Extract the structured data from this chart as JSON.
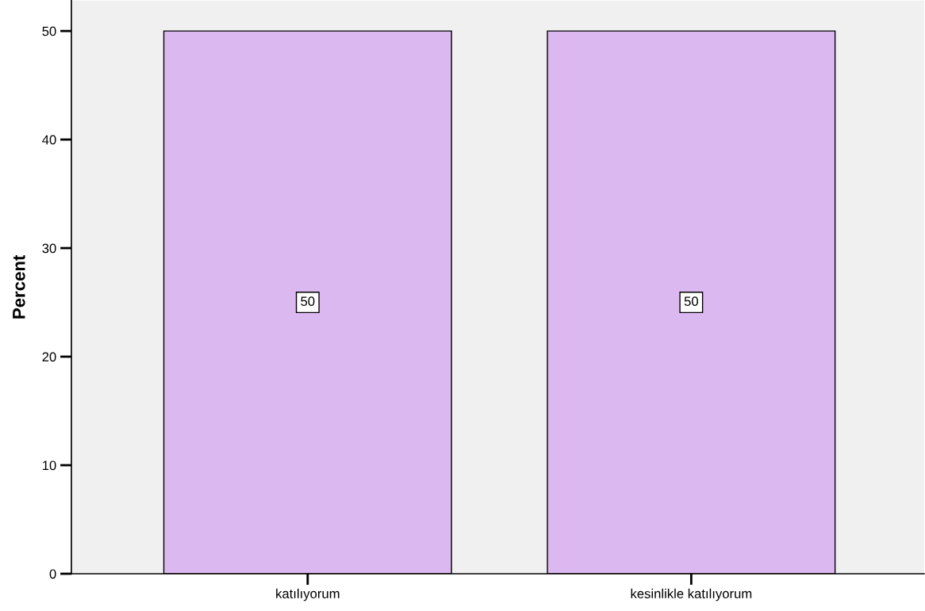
{
  "chart_data": {
    "type": "bar",
    "ylabel": "Percent",
    "categories": [
      "katılıyorum",
      "kesinlikle katılıyorum"
    ],
    "values": [
      50,
      50
    ],
    "color": "#dcb8f0",
    "ylim": [
      0,
      52.8
    ],
    "yticks": [
      0,
      10,
      20,
      30,
      40,
      50
    ],
    "grid": false,
    "data_labels": true
  }
}
